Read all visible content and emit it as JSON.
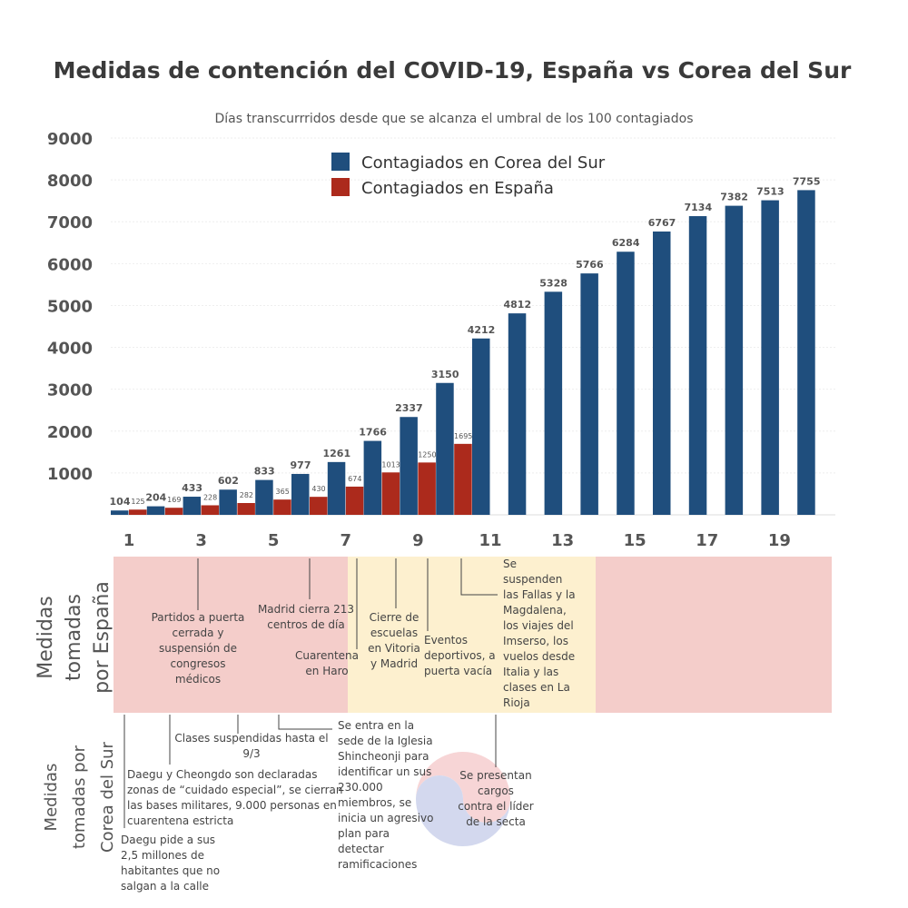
{
  "chart_data": {
    "type": "bar",
    "title": "Medidas de contención del COVID-19, España vs Corea del Sur",
    "subtitle": "Días transcurrridos desde que se alcanza el umbral de los 100 contagiados",
    "categories": [
      1,
      null,
      3,
      null,
      5,
      null,
      7,
      null,
      9,
      null,
      11,
      null,
      13,
      null,
      15,
      null,
      17,
      null,
      19,
      null
    ],
    "series": [
      {
        "name": "Contagiados en Corea del Sur",
        "color": "#1f4e7d",
        "values": [
          104,
          204,
          433,
          602,
          833,
          977,
          1261,
          1766,
          2337,
          3150,
          4212,
          4812,
          5328,
          5766,
          6284,
          6767,
          7134,
          7382,
          7513,
          7755
        ]
      },
      {
        "name": "Contagiados en España",
        "color": "#ac2a1c",
        "values": [
          125,
          169,
          228,
          282,
          365,
          430,
          674,
          1013,
          1250,
          1695,
          null,
          null,
          null,
          null,
          null,
          null,
          null,
          null,
          null,
          null
        ]
      }
    ],
    "ylim": [
      0,
      9000
    ],
    "yticks": [
      1000,
      2000,
      3000,
      4000,
      5000,
      6000,
      7000,
      8000,
      9000
    ],
    "grid": true,
    "legend": "top"
  },
  "spain_label": [
    "Medidas",
    "tomadas",
    "por España"
  ],
  "korea_label": [
    "Medidas",
    "tomadas por",
    "Corea del Sur"
  ],
  "spain_annotations": [
    {
      "lines": [
        "Partidos a puerta",
        "cerrada y",
        "suspensión de",
        "congresos",
        "médicos"
      ]
    },
    {
      "lines": [
        "Madrid cierra 213",
        "centros de día"
      ]
    },
    {
      "lines": [
        "Cuarentena",
        "en Haro"
      ]
    },
    {
      "lines": [
        "Cierre de",
        "escuelas",
        "en Vitoria",
        "y Madrid"
      ]
    },
    {
      "lines": [
        "Eventos",
        "deportivos, a",
        "puerta vacía"
      ]
    },
    {
      "lines": [
        "Se",
        "suspenden",
        "las Fallas y la",
        "Magdalena,",
        "los viajes del",
        "Imserso, los",
        "vuelos desde",
        "Italia y las",
        "clases en La",
        "Rioja"
      ]
    }
  ],
  "korea_annotations": [
    {
      "lines": [
        "Clases suspendidas hasta el",
        "9/3"
      ]
    },
    {
      "lines": [
        "Se entra en la",
        "sede de la Iglesia",
        "Shincheonji para",
        "identificar un sus",
        "230.000",
        "miembros, se",
        "inicia un agresivo",
        "plan para",
        "detectar",
        "ramificaciones"
      ]
    },
    {
      "lines": [
        "Daegu y Cheongdo son declaradas",
        "zonas de “cuidado especial”, se cierran",
        "las bases militares, 9.000 personas en",
        "cuarentena estricta"
      ]
    },
    {
      "lines": [
        "Daegu pide a sus",
        "2,5 millones de",
        "habitantes que no",
        "salgan a la calle"
      ]
    },
    {
      "lines": [
        "Se presentan",
        "cargos",
        "contra el líder",
        "de la secta"
      ]
    }
  ]
}
